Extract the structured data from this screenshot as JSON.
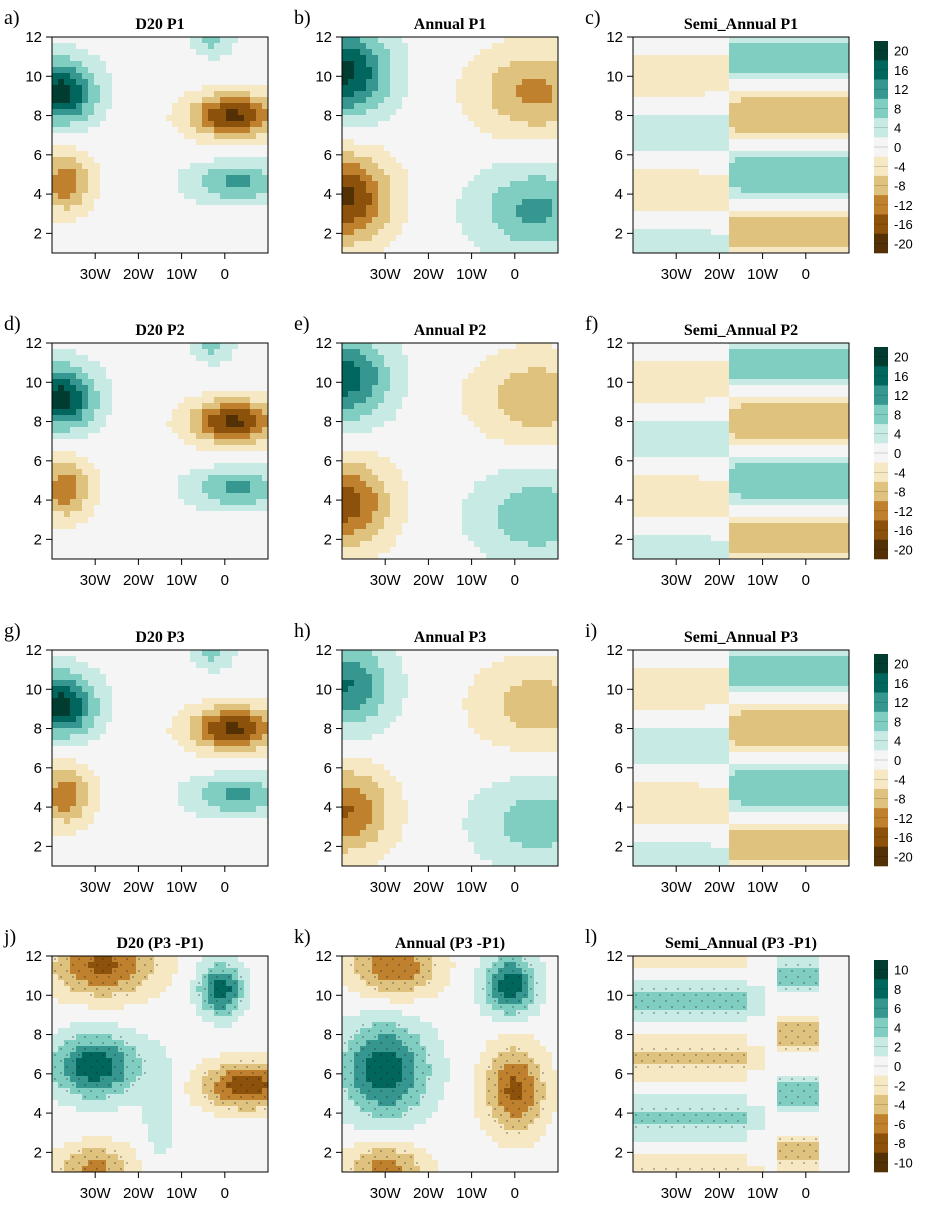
{
  "figure": {
    "xtick_labels": [
      "30W",
      "20W",
      "10W",
      "0"
    ],
    "ytick_labels": [
      "2",
      "4",
      "6",
      "8",
      "10",
      "12"
    ],
    "colors_neg_to_pos": [
      "#543005",
      "#8c510a",
      "#bf812d",
      "#dfc27d",
      "#f6e8c3",
      "#f5f5f5",
      "#c7eae5",
      "#80cdc1",
      "#35978f",
      "#01665e",
      "#003c30"
    ]
  },
  "chart_data": [
    {
      "id": "a",
      "type": "heatmap",
      "letter": "a)",
      "title": "D20 P1",
      "xlim": [
        -40,
        10
      ],
      "ylim": [
        1,
        12
      ],
      "xticks": [
        -30,
        -20,
        -10,
        0
      ],
      "yticks": [
        2,
        4,
        6,
        8,
        10,
        12
      ],
      "pattern": "d20",
      "scale": 1.0,
      "stipple": false
    },
    {
      "id": "b",
      "type": "heatmap",
      "letter": "b)",
      "title": "Annual P1",
      "xlim": [
        -40,
        10
      ],
      "ylim": [
        1,
        12
      ],
      "xticks": [
        -30,
        -20,
        -10,
        0
      ],
      "yticks": [
        2,
        4,
        6,
        8,
        10,
        12
      ],
      "pattern": "annual",
      "scale": 1.0,
      "stipple": false
    },
    {
      "id": "c",
      "type": "heatmap",
      "letter": "c)",
      "title": "Semi_Annual P1",
      "xlim": [
        -40,
        10
      ],
      "ylim": [
        1,
        12
      ],
      "xticks": [
        -30,
        -20,
        -10,
        0
      ],
      "yticks": [
        2,
        4,
        6,
        8,
        10,
        12
      ],
      "pattern": "semi",
      "scale": 1.0,
      "stipple": false
    },
    {
      "id": "d",
      "type": "heatmap",
      "letter": "d)",
      "title": "D20 P2",
      "xlim": [
        -40,
        10
      ],
      "ylim": [
        1,
        12
      ],
      "xticks": [
        -30,
        -20,
        -10,
        0
      ],
      "yticks": [
        2,
        4,
        6,
        8,
        10,
        12
      ],
      "pattern": "d20",
      "scale": 1.0,
      "stipple": false
    },
    {
      "id": "e",
      "type": "heatmap",
      "letter": "e)",
      "title": "Annual P2",
      "xlim": [
        -40,
        10
      ],
      "ylim": [
        1,
        12
      ],
      "xticks": [
        -30,
        -20,
        -10,
        0
      ],
      "yticks": [
        2,
        4,
        6,
        8,
        10,
        12
      ],
      "pattern": "annual",
      "scale": 0.85,
      "stipple": false
    },
    {
      "id": "f",
      "type": "heatmap",
      "letter": "f)",
      "title": "Semi_Annual P2",
      "xlim": [
        -40,
        10
      ],
      "ylim": [
        1,
        12
      ],
      "xticks": [
        -30,
        -20,
        -10,
        0
      ],
      "yticks": [
        2,
        4,
        6,
        8,
        10,
        12
      ],
      "pattern": "semi",
      "scale": 1.0,
      "stipple": false
    },
    {
      "id": "g",
      "type": "heatmap",
      "letter": "g)",
      "title": "D20 P3",
      "xlim": [
        -40,
        10
      ],
      "ylim": [
        1,
        12
      ],
      "xticks": [
        -30,
        -20,
        -10,
        0
      ],
      "yticks": [
        2,
        4,
        6,
        8,
        10,
        12
      ],
      "pattern": "d20",
      "scale": 1.0,
      "stipple": false
    },
    {
      "id": "h",
      "type": "heatmap",
      "letter": "h)",
      "title": "Annual P3",
      "xlim": [
        -40,
        10
      ],
      "ylim": [
        1,
        12
      ],
      "xticks": [
        -30,
        -20,
        -10,
        0
      ],
      "yticks": [
        2,
        4,
        6,
        8,
        10,
        12
      ],
      "pattern": "annual",
      "scale": 0.75,
      "stipple": false
    },
    {
      "id": "i",
      "type": "heatmap",
      "letter": "i)",
      "title": "Semi_Annual P3",
      "xlim": [
        -40,
        10
      ],
      "ylim": [
        1,
        12
      ],
      "xticks": [
        -30,
        -20,
        -10,
        0
      ],
      "yticks": [
        2,
        4,
        6,
        8,
        10,
        12
      ],
      "pattern": "semi",
      "scale": 1.0,
      "stipple": false
    },
    {
      "id": "j",
      "type": "heatmap",
      "letter": "j)",
      "title": "D20 (P3 -P1)",
      "xlim": [
        -40,
        10
      ],
      "ylim": [
        1,
        12
      ],
      "xticks": [
        -30,
        -20,
        -10,
        0
      ],
      "yticks": [
        2,
        4,
        6,
        8,
        10,
        12
      ],
      "pattern": "d20diff",
      "scale": 1.0,
      "stipple": true
    },
    {
      "id": "k",
      "type": "heatmap",
      "letter": "k)",
      "title": "Annual (P3 -P1)",
      "xlim": [
        -40,
        10
      ],
      "ylim": [
        1,
        12
      ],
      "xticks": [
        -30,
        -20,
        -10,
        0
      ],
      "yticks": [
        2,
        4,
        6,
        8,
        10,
        12
      ],
      "pattern": "anndiff",
      "scale": 1.0,
      "stipple": true
    },
    {
      "id": "l",
      "type": "heatmap",
      "letter": "l)",
      "title": "Semi_Annual (P3 -P1)",
      "xlim": [
        -40,
        10
      ],
      "ylim": [
        1,
        12
      ],
      "xticks": [
        -30,
        -20,
        -10,
        0
      ],
      "yticks": [
        2,
        4,
        6,
        8,
        10,
        12
      ],
      "pattern": "semidiff",
      "scale": 1.0,
      "stipple": true
    }
  ],
  "colorbars": [
    {
      "id": "cb1",
      "labels": [
        "20",
        "16",
        "12",
        "8",
        "4",
        "0",
        "-4",
        "-8",
        "-12",
        "-16",
        "-20"
      ],
      "levels": [
        20,
        16,
        12,
        8,
        4,
        0,
        -4,
        -8,
        -12,
        -16,
        -20
      ]
    },
    {
      "id": "cb2",
      "labels": [
        "20",
        "16",
        "12",
        "8",
        "4",
        "0",
        "-4",
        "-8",
        "-12",
        "-16",
        "-20"
      ],
      "levels": [
        20,
        16,
        12,
        8,
        4,
        0,
        -4,
        -8,
        -12,
        -16,
        -20
      ]
    },
    {
      "id": "cb3",
      "labels": [
        "20",
        "16",
        "12",
        "8",
        "4",
        "0",
        "-4",
        "-8",
        "-12",
        "-16",
        "-20"
      ],
      "levels": [
        20,
        16,
        12,
        8,
        4,
        0,
        -4,
        -8,
        -12,
        -16,
        -20
      ]
    },
    {
      "id": "cb4",
      "labels": [
        "10",
        "8",
        "6",
        "4",
        "2",
        "0",
        "-2",
        "-4",
        "-6",
        "-8",
        "-10"
      ],
      "levels": [
        10,
        8,
        6,
        4,
        2,
        0,
        -2,
        -4,
        -6,
        -8,
        -10
      ]
    }
  ]
}
